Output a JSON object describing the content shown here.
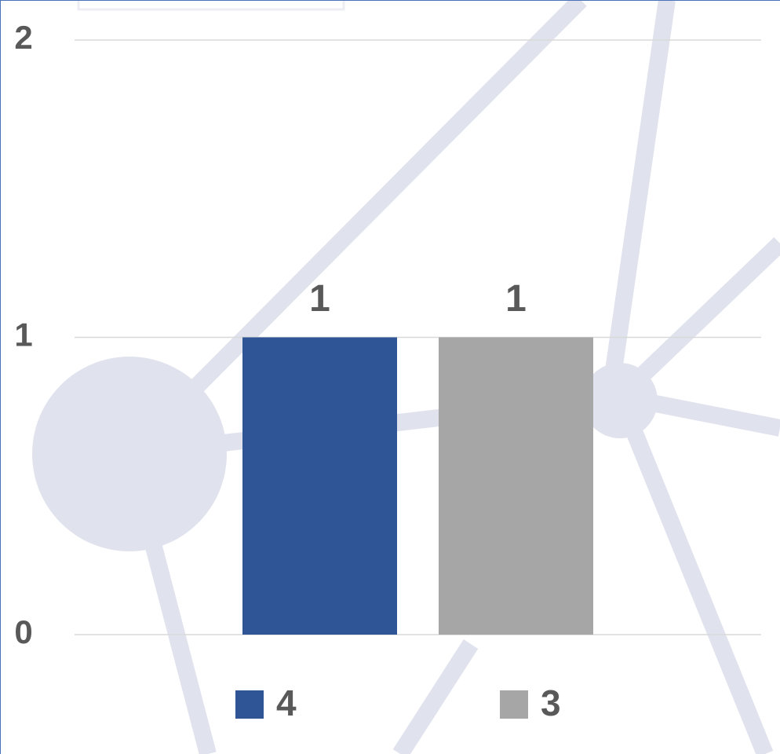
{
  "chart_data": {
    "type": "bar",
    "categories": [
      null
    ],
    "series": [
      {
        "name": "4",
        "color": "#2f5597",
        "values": [
          1
        ]
      },
      {
        "name": "3",
        "color": "#a6a6a6",
        "values": [
          1
        ]
      }
    ],
    "ylim": [
      0,
      2
    ],
    "yticks": [
      0,
      1,
      2
    ],
    "grid": true,
    "legend": "bottom",
    "data_labels": true
  }
}
